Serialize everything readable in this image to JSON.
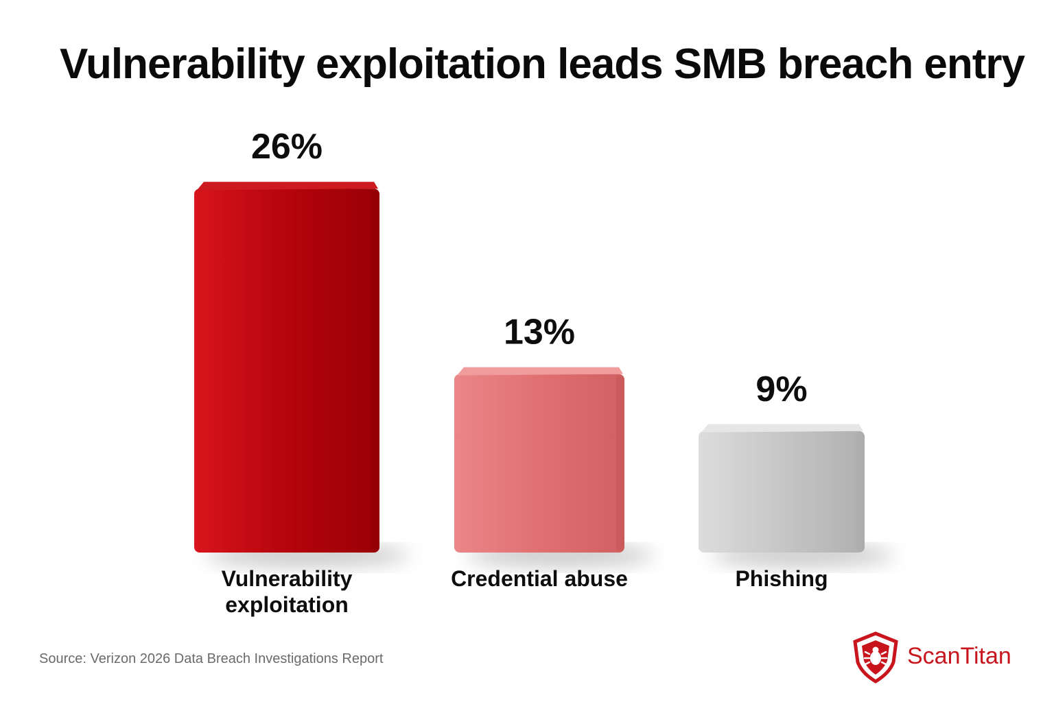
{
  "chart_data": {
    "type": "bar",
    "title": "Vulnerability exploitation leads SMB breach entry",
    "categories": [
      "Vulnerability exploitation",
      "Credential abuse",
      "Phishing"
    ],
    "category_lines": [
      [
        "Vulnerability",
        "exploitation"
      ],
      [
        "Credential abuse"
      ],
      [
        "Phishing"
      ]
    ],
    "values": [
      26,
      13,
      9
    ],
    "value_labels": [
      "26%",
      "13%",
      "9%"
    ],
    "unit": "%",
    "colors": [
      "#c20a12",
      "#e57a7c",
      "#c9c9c9"
    ],
    "ylim": [
      0,
      26
    ],
    "grid": false,
    "legend": "none"
  },
  "source": "Source: Verizon 2026 Data Breach Investigations Report",
  "brand": {
    "name": "ScanTitan",
    "icon": "shield-bug-icon",
    "color": "#c8141c"
  }
}
